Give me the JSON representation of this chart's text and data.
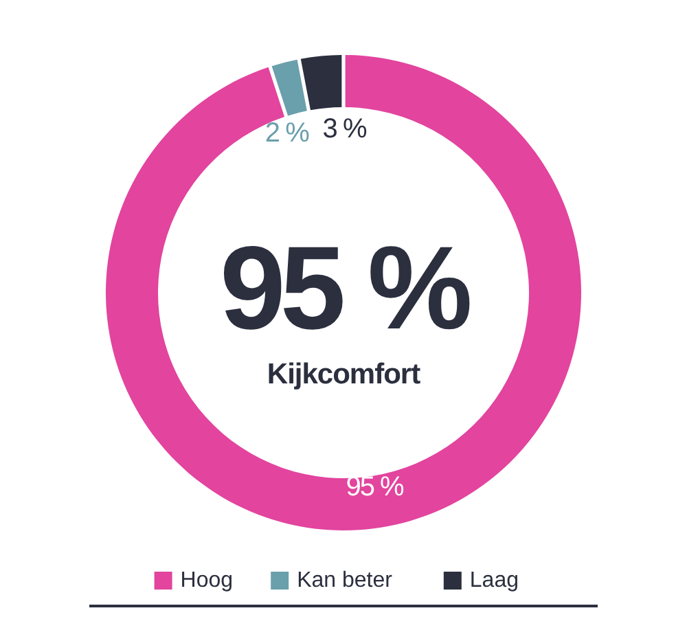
{
  "chart_data": {
    "type": "donut",
    "categories": [
      "Hoog",
      "Kan beter",
      "Laag"
    ],
    "values": [
      95,
      2,
      3
    ],
    "colors": [
      "#e2449e",
      "#6a9fac",
      "#2b2f3e"
    ],
    "value_labels": [
      "95 %",
      "2 %",
      "3 %"
    ],
    "annotations": [
      "95 %",
      "Kijkcomfort"
    ],
    "legend": "bottom"
  }
}
